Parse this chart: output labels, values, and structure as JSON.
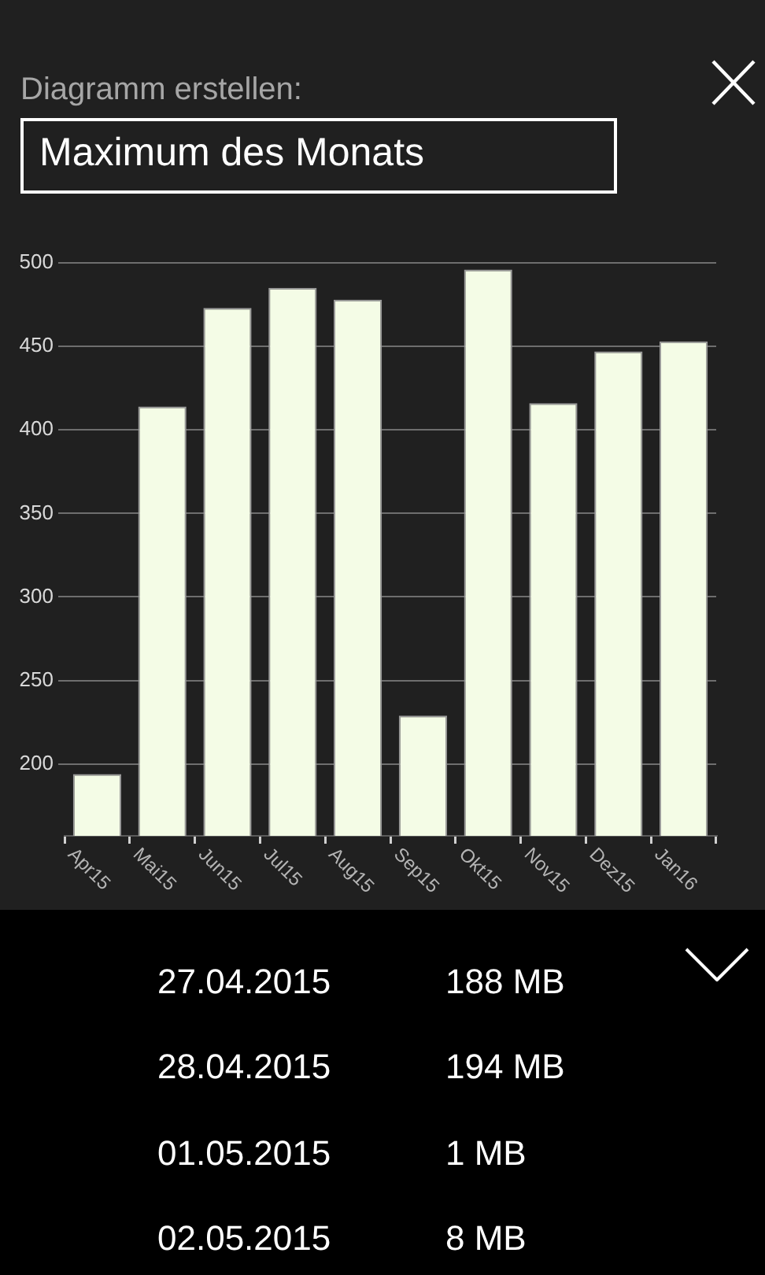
{
  "chart_data": {
    "type": "bar",
    "title": "Diagramm erstellen:",
    "subtitle": "Maximum des Monats",
    "categories": [
      "Apr15",
      "Mai15",
      "Jun15",
      "Jul15",
      "Aug15",
      "Sep15",
      "Okt15",
      "Nov15",
      "Dez15",
      "Jan16"
    ],
    "values": [
      194,
      414,
      473,
      485,
      478,
      229,
      496,
      416,
      447,
      453
    ],
    "color": "#f4fce6",
    "ylim": [
      157,
      500
    ],
    "yticks": [
      200,
      250,
      300,
      350,
      400,
      450,
      500
    ],
    "grid": "y",
    "annotations": [
      "27.04.2015",
      "188 MB",
      "28.04.2015",
      "194 MB",
      "01.05.2015",
      "1 MB",
      "02.05.2015",
      "8 MB"
    ]
  }
}
